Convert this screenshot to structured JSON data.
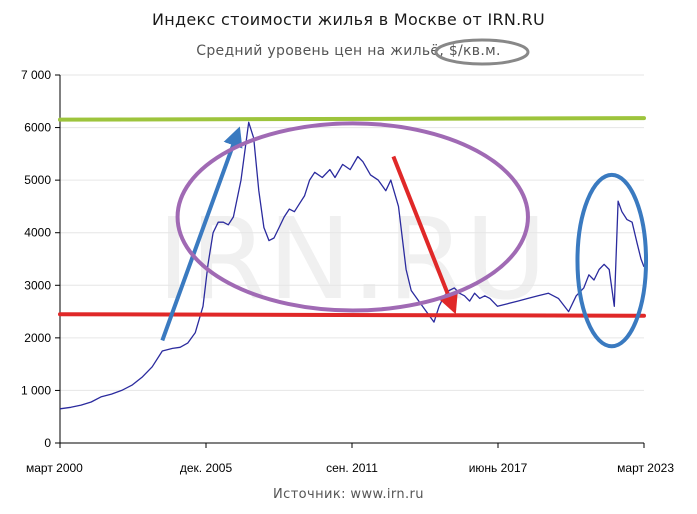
{
  "chart_data": {
    "type": "line",
    "title": "Индекс стоимости жилья в Москве от IRN.RU",
    "subtitle": "Средний уровень цен на жильё, $/кв.м.",
    "source": "Источник: www.irn.ru",
    "watermark": "IRN.RU",
    "ylim": [
      0,
      7000
    ],
    "y_ticks": [
      0,
      1000,
      2000,
      3000,
      4000,
      5000,
      6000,
      7000
    ],
    "y_tick_labels": [
      "0",
      "1 000",
      "2000",
      "3000",
      "4000",
      "5000",
      "6000",
      "7 000"
    ],
    "x_ticks": [
      2000.17,
      2005.92,
      2011.67,
      2017.42,
      2023.17
    ],
    "x_tick_labels": [
      "март 2000",
      "дек. 2005",
      "сен. 2011",
      "июнь 2017",
      "март 2023"
    ],
    "xlim": [
      2000.17,
      2023.17
    ],
    "grid": "horizontal",
    "series": [
      {
        "color": "#2b2b9e",
        "x": [
          2000.17,
          2000.6,
          2001.0,
          2001.4,
          2001.8,
          2002.2,
          2002.6,
          2003.0,
          2003.4,
          2003.8,
          2004.2,
          2004.6,
          2004.9,
          2005.2,
          2005.5,
          2005.8,
          2006.0,
          2006.2,
          2006.4,
          2006.6,
          2006.8,
          2007.0,
          2007.3,
          2007.6,
          2007.8,
          2008.0,
          2008.2,
          2008.4,
          2008.6,
          2008.8,
          2009.0,
          2009.2,
          2009.4,
          2009.6,
          2009.8,
          2010.0,
          2010.2,
          2010.5,
          2010.8,
          2011.0,
          2011.3,
          2011.6,
          2011.9,
          2012.1,
          2012.4,
          2012.7,
          2013.0,
          2013.2,
          2013.5,
          2013.8,
          2014.0,
          2014.3,
          2014.6,
          2014.9,
          2015.1,
          2015.3,
          2015.5,
          2015.7,
          2015.9,
          2016.1,
          2016.3,
          2016.5,
          2016.7,
          2016.9,
          2017.1,
          2017.4,
          2017.8,
          2018.2,
          2018.6,
          2019.0,
          2019.4,
          2019.8,
          2020.2,
          2020.5,
          2020.8,
          2021.0,
          2021.2,
          2021.4,
          2021.6,
          2021.8,
          2022.0,
          2022.15,
          2022.3,
          2022.5,
          2022.7,
          2022.9,
          2023.05,
          2023.17
        ],
        "y": [
          650,
          680,
          720,
          780,
          880,
          930,
          1000,
          1100,
          1250,
          1450,
          1750,
          1800,
          1820,
          1900,
          2100,
          2600,
          3400,
          4000,
          4200,
          4200,
          4150,
          4300,
          5000,
          6100,
          5800,
          4800,
          4100,
          3850,
          3900,
          4100,
          4300,
          4450,
          4400,
          4550,
          4700,
          5000,
          5150,
          5050,
          5200,
          5050,
          5300,
          5200,
          5450,
          5350,
          5100,
          5000,
          4800,
          5000,
          4500,
          3300,
          2900,
          2700,
          2500,
          2300,
          2600,
          2800,
          2900,
          2950,
          2850,
          2800,
          2700,
          2850,
          2750,
          2800,
          2750,
          2600,
          2650,
          2700,
          2750,
          2800,
          2850,
          2750,
          2500,
          2800,
          2950,
          3200,
          3100,
          3300,
          3400,
          3300,
          2600,
          4600,
          4400,
          4250,
          4200,
          3800,
          3500,
          3350
        ]
      }
    ],
    "annotations": [
      {
        "type": "hline",
        "color": "#9dc43c",
        "y1": 6150,
        "y2": 6180
      },
      {
        "type": "hline",
        "color": "#e02828",
        "y1": 2450,
        "y2": 2420
      },
      {
        "type": "arrow",
        "color": "#3a7ac0",
        "from": [
          2004.2,
          1950
        ],
        "to": [
          2007.2,
          5950
        ]
      },
      {
        "type": "arrow",
        "color": "#e02828",
        "from": [
          2013.3,
          5450
        ],
        "to": [
          2015.7,
          2520
        ]
      },
      {
        "type": "ellipse",
        "color": "#a06ab4",
        "center": [
          2011.7,
          4300
        ],
        "radii": [
          6.9,
          1780
        ]
      },
      {
        "type": "ellipse",
        "color": "#3a7ac0",
        "center": [
          2021.9,
          3470
        ],
        "radii": [
          1.35,
          1630
        ]
      },
      {
        "type": "ellipse",
        "color": "#888888",
        "target": "subtitle-unit"
      }
    ]
  }
}
